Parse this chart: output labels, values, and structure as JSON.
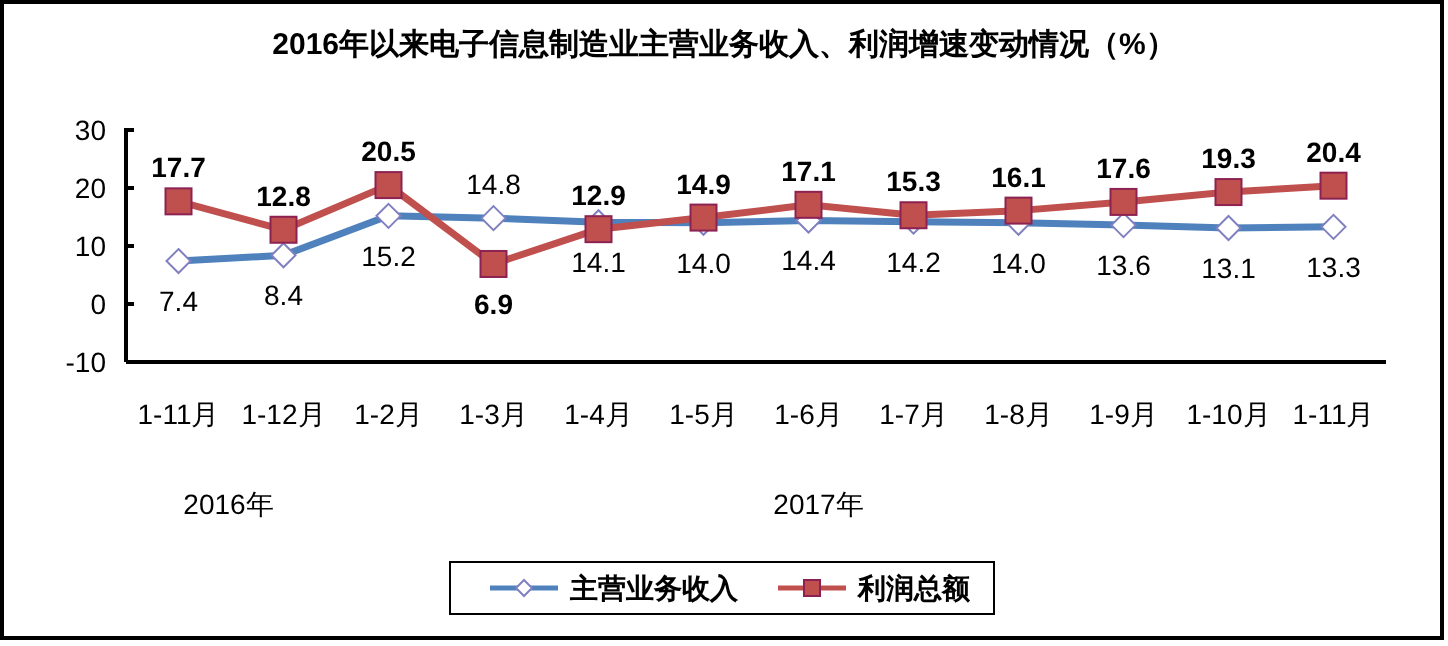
{
  "chart_data": {
    "type": "line",
    "title": "2016年以来电子信息制造业主营业务收入、利润增速变动情况（%）",
    "categories": [
      "1-11月",
      "1-12月",
      "1-2月",
      "1-3月",
      "1-4月",
      "1-5月",
      "1-6月",
      "1-7月",
      "1-8月",
      "1-9月",
      "1-10月",
      "1-11月"
    ],
    "series": [
      {
        "name": "主营业务收入",
        "color": "#4f81bd",
        "marker": "diamond",
        "values": [
          7.4,
          8.4,
          15.2,
          14.8,
          14.1,
          14.0,
          14.4,
          14.2,
          14.0,
          13.6,
          13.1,
          13.3
        ],
        "value_labels": [
          "7.4",
          "8.4",
          "15.2",
          "14.8",
          "14.1",
          "14.0",
          "14.4",
          "14.2",
          "14.0",
          "13.6",
          "13.1",
          "13.3"
        ]
      },
      {
        "name": "利润总额",
        "color": "#c0504d",
        "marker": "square",
        "values": [
          17.7,
          12.8,
          20.5,
          6.9,
          12.9,
          14.9,
          17.1,
          15.3,
          16.1,
          17.6,
          19.3,
          20.4
        ],
        "value_labels": [
          "17.7",
          "12.8",
          "20.5",
          "6.9",
          "12.9",
          "14.9",
          "17.1",
          "15.3",
          "16.1",
          "17.6",
          "19.3",
          "20.4"
        ]
      }
    ],
    "ylim": [
      -10,
      30
    ],
    "yticks": [
      -10,
      0,
      10,
      20,
      30
    ],
    "grid": false,
    "legend": "bottom",
    "annotations": [
      "2016年",
      "2017年"
    ]
  }
}
